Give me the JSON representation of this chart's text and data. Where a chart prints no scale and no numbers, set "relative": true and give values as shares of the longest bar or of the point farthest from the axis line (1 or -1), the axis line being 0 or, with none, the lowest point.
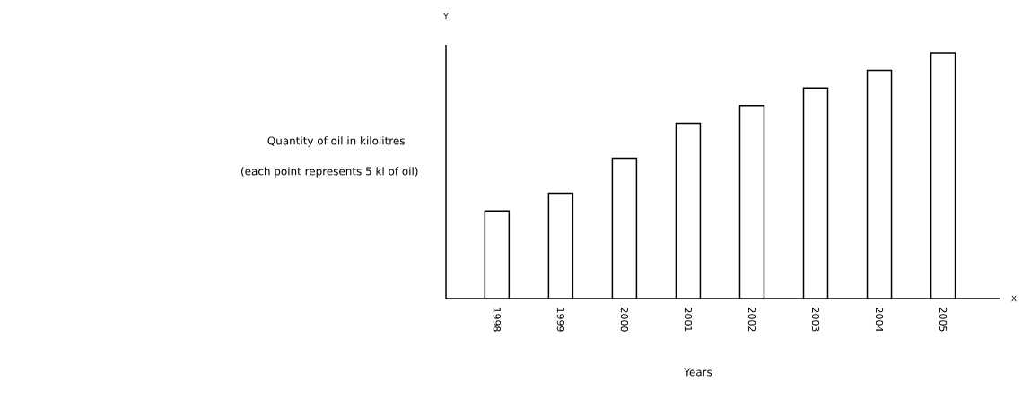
{
  "chart_data": {
    "type": "bar",
    "relative": true,
    "categories": [
      "1998",
      "1999",
      "2000",
      "2001",
      "2002",
      "2003",
      "2004",
      "2005"
    ],
    "values": [
      0.357,
      0.429,
      0.571,
      0.714,
      0.786,
      0.857,
      0.929,
      1
    ],
    "color": "#ffffff",
    "xlabel": "Years",
    "ylabel": "Quantity of oil in kilolitres",
    "annotations": [
      "(each point represents 5 kl of oil)",
      "Y",
      "X"
    ],
    "grid": false
  }
}
